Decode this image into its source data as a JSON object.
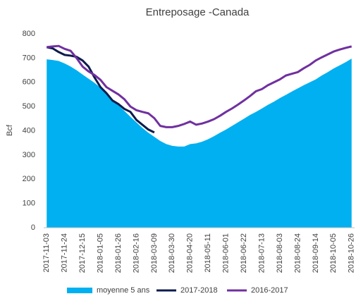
{
  "chart_data": {
    "type": "line",
    "title": "Entreposage -Canada",
    "y_label": "Bcf",
    "categories": [
      "2017-11-03",
      null,
      null,
      "2017-11-24",
      null,
      null,
      "2017-12-15",
      null,
      null,
      "2018-01-05",
      null,
      null,
      "2018-01-26",
      null,
      null,
      "2018-02-16",
      null,
      null,
      "2018-03-09",
      null,
      null,
      "2018-03-30",
      null,
      null,
      "2018-04-20",
      null,
      null,
      "2018-05-11",
      null,
      null,
      "2018-06-01",
      null,
      null,
      "2018-06-22",
      null,
      null,
      "2018-07-13",
      null,
      null,
      "2018-08-03",
      null,
      null,
      "2018-08-24",
      null,
      null,
      "2018-09-14",
      null,
      null,
      "2018-10-05",
      null,
      null,
      "2018-10-26"
    ],
    "series": [
      {
        "name": "moyenne 5 ans",
        "kind": "area",
        "color": "#00b0f0",
        "values": [
          695,
          692,
          688,
          678,
          665,
          650,
          632,
          615,
          598,
          578,
          555,
          530,
          505,
          482,
          458,
          435,
          412,
          392,
          375,
          358,
          345,
          338,
          335,
          335,
          345,
          348,
          355,
          365,
          378,
          392,
          405,
          420,
          435,
          450,
          465,
          478,
          492,
          507,
          520,
          535,
          548,
          562,
          575,
          588,
          600,
          612,
          628,
          642,
          657,
          670,
          683,
          698
        ]
      },
      {
        "name": "2017-2018",
        "kind": "line",
        "color": "#0d1b4c",
        "values": [
          745,
          740,
          725,
          713,
          710,
          705,
          690,
          665,
          620,
          580,
          555,
          525,
          510,
          490,
          478,
          445,
          425,
          405,
          393,
          null,
          null,
          null,
          null,
          null,
          null,
          null,
          null,
          null,
          null,
          null,
          null,
          null,
          null,
          null,
          null,
          null,
          null,
          null,
          null,
          null,
          null,
          null,
          null,
          null,
          null,
          null,
          null,
          null,
          null,
          null,
          null,
          null
        ]
      },
      {
        "name": "2016-2017",
        "kind": "line",
        "color": "#7030a0",
        "values": [
          745,
          748,
          750,
          738,
          730,
          700,
          665,
          645,
          630,
          610,
          580,
          565,
          550,
          530,
          500,
          485,
          478,
          472,
          452,
          420,
          415,
          415,
          420,
          428,
          438,
          425,
          430,
          438,
          448,
          462,
          478,
          492,
          508,
          525,
          543,
          563,
          572,
          588,
          600,
          612,
          628,
          635,
          642,
          658,
          672,
          690,
          703,
          715,
          727,
          735,
          742,
          748
        ]
      }
    ],
    "ylim": [
      0,
      800
    ],
    "yticks": [
      0,
      100,
      200,
      300,
      400,
      500,
      600,
      700,
      800
    ],
    "legend": "bottom"
  }
}
